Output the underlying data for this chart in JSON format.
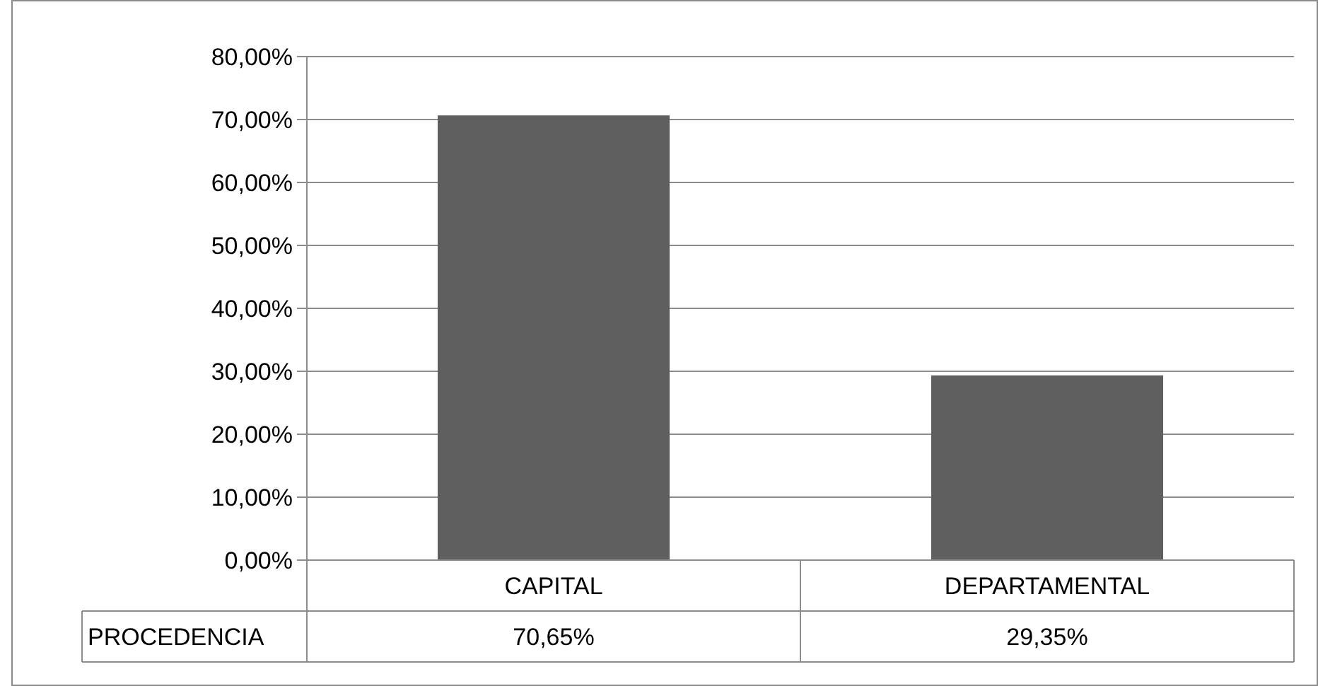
{
  "chart_data": {
    "type": "bar",
    "categories": [
      "CAPITAL",
      "DEPARTAMENTAL"
    ],
    "series": [
      {
        "name": "PROCEDENCIA",
        "color": "#5f5f5f",
        "values": [
          70.65,
          29.35
        ],
        "value_labels": [
          "70,65%",
          "29,35%"
        ]
      }
    ],
    "ylim": [
      0,
      80
    ],
    "yticks": [
      {
        "value": 0,
        "label": "0,00%"
      },
      {
        "value": 10,
        "label": "10,00%"
      },
      {
        "value": 20,
        "label": "20,00%"
      },
      {
        "value": 30,
        "label": "30,00%"
      },
      {
        "value": 40,
        "label": "40,00%"
      },
      {
        "value": 50,
        "label": "50,00%"
      },
      {
        "value": 60,
        "label": "60,00%"
      },
      {
        "value": 70,
        "label": "70,00%"
      },
      {
        "value": 80,
        "label": "80,00%"
      }
    ],
    "grid": "y"
  }
}
